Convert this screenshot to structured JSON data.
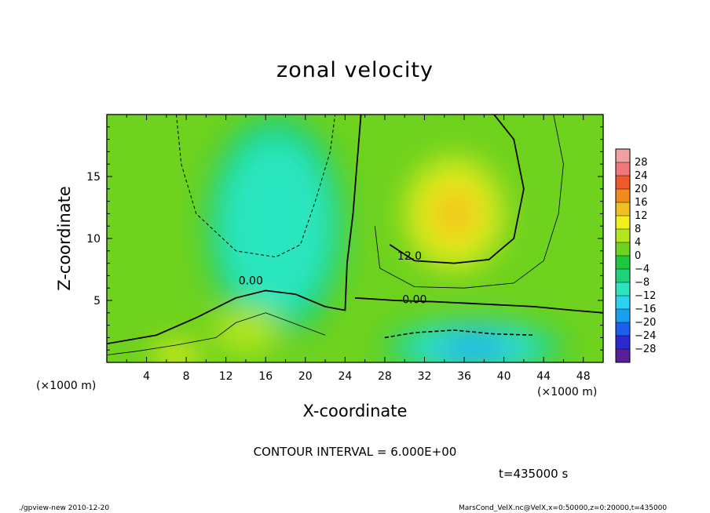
{
  "chart_data": {
    "type": "heatmap",
    "title": "zonal velocity",
    "xlabel": "X-coordinate",
    "ylabel": "Z-coordinate",
    "x_unit_label": "(×1000 m)",
    "xlim": [
      0,
      50
    ],
    "ylim": [
      0,
      20
    ],
    "x_ticks": [
      4,
      8,
      12,
      16,
      20,
      24,
      28,
      32,
      36,
      40,
      44,
      48
    ],
    "y_ticks": [
      5,
      10,
      15
    ],
    "colorbar": {
      "levels": [
        -28,
        -24,
        -20,
        -16,
        -12,
        -8,
        -4,
        0,
        4,
        8,
        12,
        16,
        20,
        24,
        28
      ],
      "labels": [
        "28",
        "24",
        "20",
        "16",
        "12",
        "8",
        "4",
        "0",
        "−4",
        "−8",
        "−12",
        "−16",
        "−20",
        "−24",
        "−28"
      ],
      "colors": [
        "#5a1e96",
        "#2a2ad2",
        "#1c5ef0",
        "#1c9ef0",
        "#2ad2f0",
        "#2ae6c0",
        "#1ed27a",
        "#1ec83c",
        "#6ed21e",
        "#b4e61e",
        "#f0f01e",
        "#f0c01e",
        "#f08c1e",
        "#f05a2a",
        "#f07878",
        "#f0a0a0"
      ]
    },
    "contour_labels": [
      {
        "text": "0.00",
        "x": 14.5,
        "z": 6.6
      },
      {
        "text": "0.00",
        "x": 31.0,
        "z": 5.1
      },
      {
        "text": "12.0",
        "x": 30.5,
        "z": 8.6
      }
    ],
    "contour_interval": 6.0,
    "field_features": [
      {
        "name": "upper-left negative cell",
        "x": 17,
        "z": 11,
        "value": -9
      },
      {
        "name": "upper-right positive cell",
        "x": 35,
        "z": 12,
        "value": 17
      },
      {
        "name": "lower-right negative cell",
        "x": 37,
        "z": 1.2,
        "value": -20
      },
      {
        "name": "lower-left positive cell",
        "x": 7,
        "z": 0.5,
        "value": 14
      },
      {
        "name": "lower-middle positive cell",
        "x": 14,
        "z": 2.5,
        "value": 9
      }
    ]
  },
  "labels": {
    "contour_interval": "CONTOUR INTERVAL = 6.000E+00",
    "time": "t=435000 s",
    "footer_left": "./gpview-new  2010-12-20",
    "footer_right": "MarsCond_VelX.nc@VelX,x=0:50000,z=0:20000,t=435000"
  }
}
